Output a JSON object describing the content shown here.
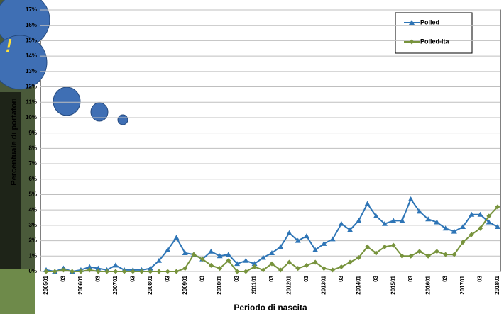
{
  "chart_data": {
    "type": "line",
    "annotation": "!",
    "y_label": "Percentuale di portatori",
    "x_label": "Periodo di nascita",
    "categories": [
      "200501",
      null,
      "03",
      null,
      "200601",
      null,
      "03",
      null,
      "200701",
      null,
      "03",
      null,
      "200801",
      null,
      "03",
      null,
      "200901",
      null,
      "03",
      null,
      "201001",
      null,
      "03",
      null,
      "201101",
      null,
      "03",
      null,
      "201201",
      null,
      "03",
      null,
      "201301",
      null,
      "03",
      null,
      "201401",
      null,
      "03",
      null,
      "201501",
      null,
      "03",
      null,
      "201601",
      null,
      "03",
      null,
      "201701",
      null,
      "03",
      null,
      "201801"
    ],
    "series": [
      {
        "name": "Polled",
        "color": "#2e75b6",
        "marker": "triangle",
        "values": [
          0.1,
          0,
          0.2,
          0,
          0.1,
          0.3,
          0.2,
          0.1,
          0.4,
          0.1,
          0.1,
          0.1,
          0.2,
          0.7,
          1.4,
          2.2,
          1.2,
          1.1,
          0.8,
          1.3,
          1.0,
          1.1,
          0.5,
          0.7,
          0.5,
          0.9,
          1.2,
          1.6,
          2.5,
          2.0,
          2.3,
          1.4,
          1.8,
          2.1,
          3.1,
          2.7,
          3.3,
          4.4,
          3.6,
          3.1,
          3.3,
          3.3,
          4.7,
          3.9,
          3.4,
          3.2,
          2.8,
          2.6,
          2.9,
          3.7,
          3.7,
          3.2,
          2.9
        ]
      },
      {
        "name": "Polled-Ita",
        "color": "#77933c",
        "marker": "diamond",
        "values": [
          0,
          0,
          0.1,
          0,
          0,
          0.1,
          0,
          0,
          0,
          0,
          0,
          0,
          0,
          0,
          0,
          0,
          0.2,
          1.1,
          0.8,
          0.4,
          0.2,
          0.7,
          0,
          0,
          0.3,
          0.1,
          0.5,
          0.1,
          0.6,
          0.2,
          0.4,
          0.6,
          0.2,
          0.1,
          0.3,
          0.6,
          0.9,
          1.6,
          1.2,
          1.6,
          1.7,
          1.0,
          1.0,
          1.3,
          1.0,
          1.3,
          1.1,
          1.1,
          1.9,
          2.4,
          2.8,
          3.6,
          4.2
        ]
      }
    ],
    "ylim": [
      0,
      17
    ],
    "yticks": [
      {
        "value": 0,
        "label": "0%"
      },
      {
        "value": 1,
        "label": "1%"
      },
      {
        "value": 2,
        "label": "2%"
      },
      {
        "value": 3,
        "label": "3%"
      },
      {
        "value": 4,
        "label": "4%"
      },
      {
        "value": 5,
        "label": "5%"
      },
      {
        "value": 6,
        "label": "6%"
      },
      {
        "value": 7,
        "label": "7%"
      },
      {
        "value": 8,
        "label": "8%"
      },
      {
        "value": 9,
        "label": "9%"
      },
      {
        "value": 10,
        "label": "10%"
      },
      {
        "value": 11,
        "label": "11%"
      },
      {
        "value": 12,
        "label": "12%"
      },
      {
        "value": 13,
        "label": "13%"
      },
      {
        "value": 14,
        "label": "14%"
      },
      {
        "value": 15,
        "label": "15%"
      },
      {
        "value": 16,
        "label": "16%"
      },
      {
        "value": 17,
        "label": "17%"
      }
    ],
    "grid": true,
    "legend": "top-right"
  }
}
